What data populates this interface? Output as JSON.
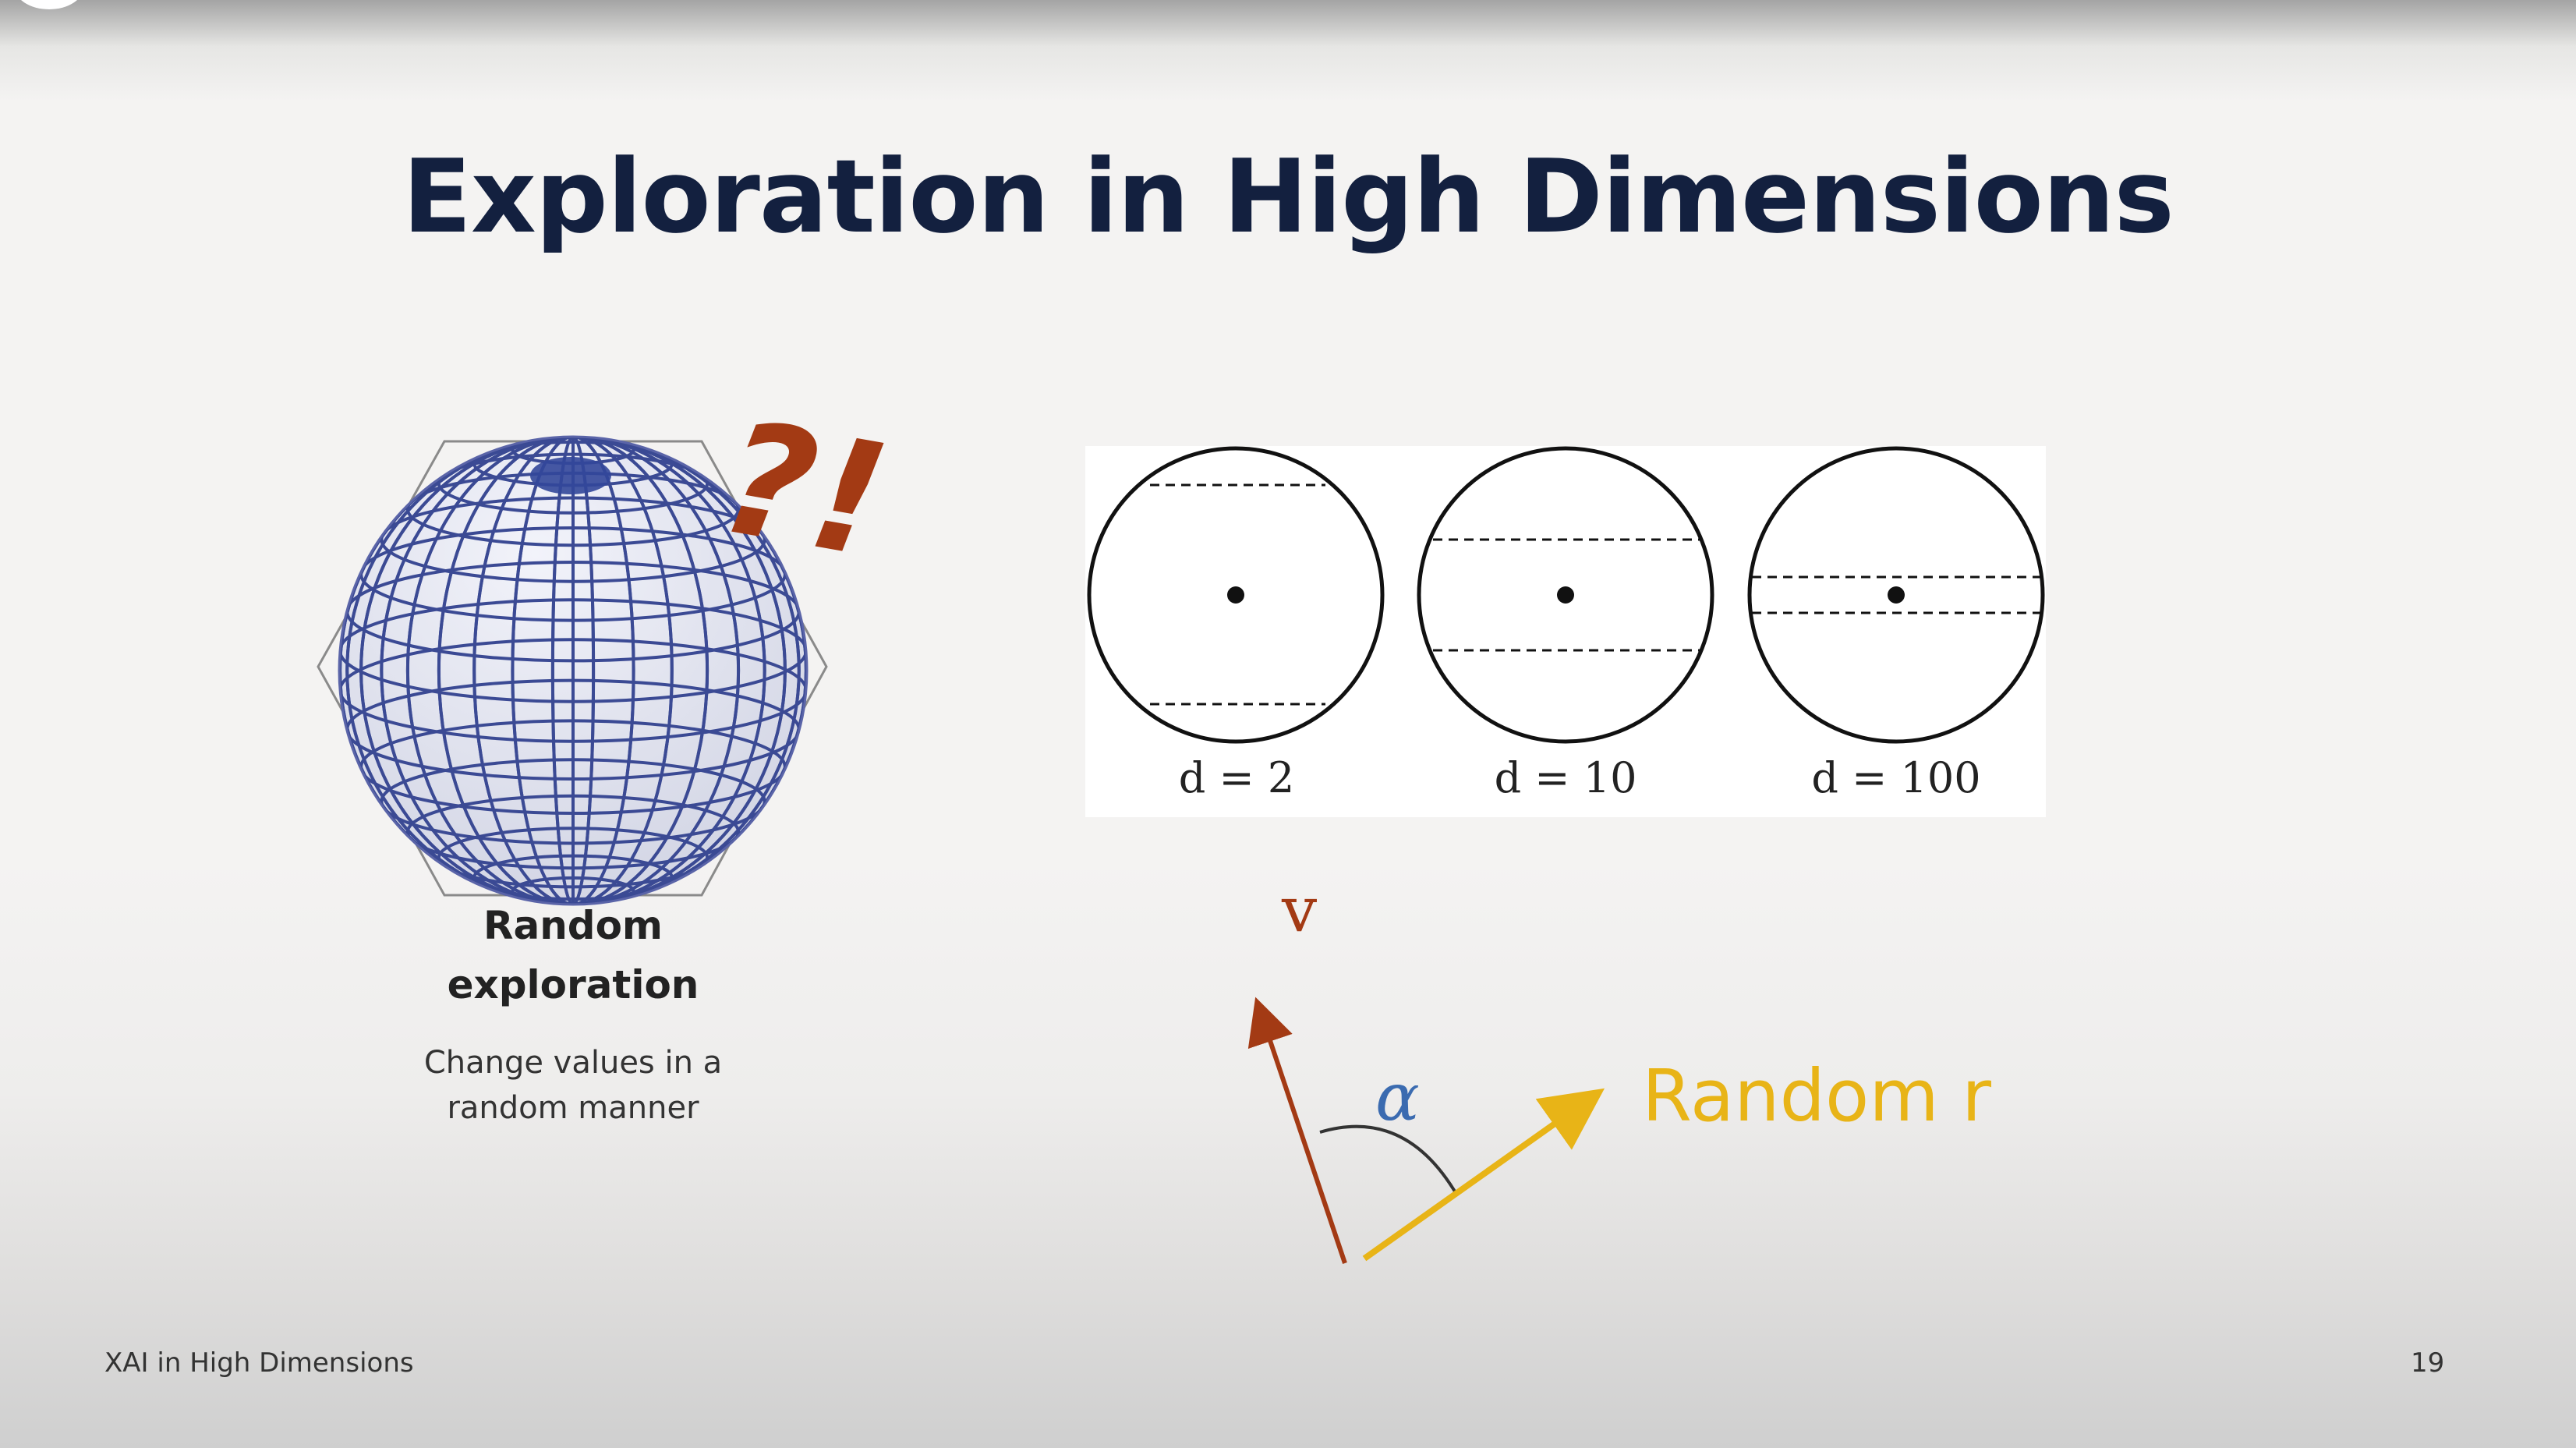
{
  "slide": {
    "title": "Exploration in High Dimensions",
    "page_number": "19",
    "footer_text": "XAI in High Dimensions"
  },
  "left_panel": {
    "heading_line1": "Random",
    "heading_line2": "exploration",
    "desc_line1": "Change values in a",
    "desc_line2": "random manner",
    "mark": "?!"
  },
  "circles": [
    {
      "label": "d = 2"
    },
    {
      "label": "d = 10"
    },
    {
      "label": "d = 100"
    }
  ],
  "vector_diagram": {
    "v_label": "v",
    "angle_label": "α",
    "r_label": "Random r"
  },
  "colors": {
    "title": "#13203f",
    "v_vector": "#a33a14",
    "r_vector": "#e8b417",
    "angle": "#3b6bb0",
    "mark": "#a33a14"
  }
}
